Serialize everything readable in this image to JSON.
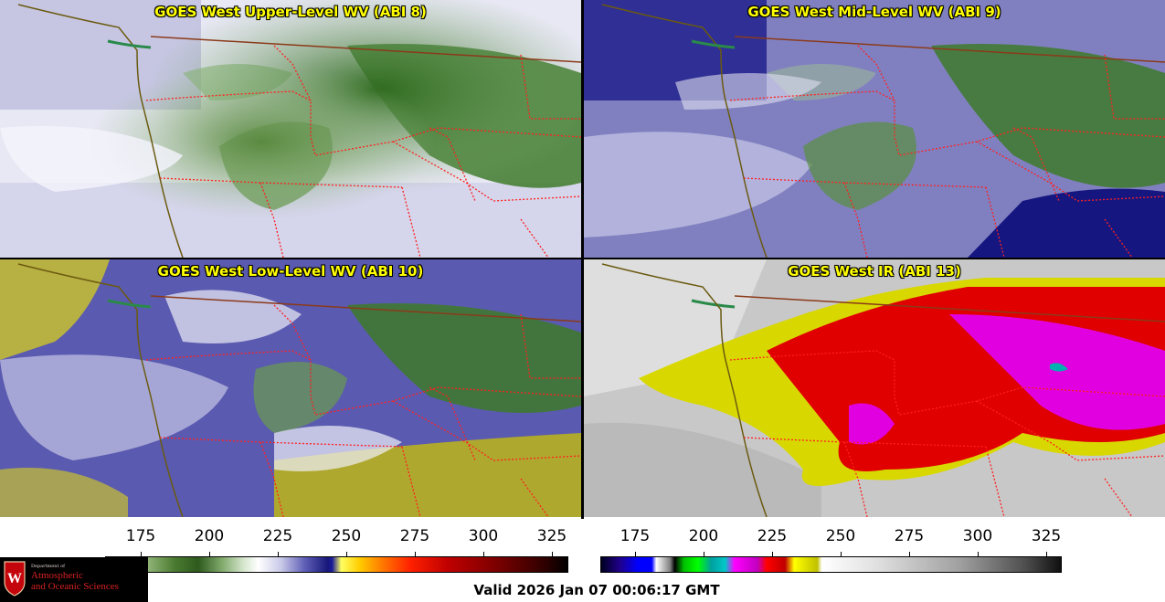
{
  "panels": [
    {
      "id": "p1",
      "title": "GOES West Upper-Level WV (ABI 8)",
      "scheme": "wv_upper"
    },
    {
      "id": "p2",
      "title": "GOES West Mid-Level WV (ABI 9)",
      "scheme": "wv_mid"
    },
    {
      "id": "p3",
      "title": "GOES West Low-Level WV (ABI 10)",
      "scheme": "wv_low"
    },
    {
      "id": "p4",
      "title": "GOES West IR (ABI 13)",
      "scheme": "ir"
    }
  ],
  "colorbars": {
    "wv": {
      "ticks": [
        "175",
        "200",
        "225",
        "250",
        "275",
        "300",
        "325"
      ]
    },
    "ir": {
      "ticks": [
        "175",
        "200",
        "225",
        "250",
        "275",
        "300",
        "325"
      ]
    }
  },
  "valid_time": "Valid 2026 Jan 07 00:06:17 GMT",
  "logo": {
    "line1": "Department of",
    "line2": "Atmospheric",
    "line3": "and Oceanic Sciences",
    "crest_letter": "W"
  },
  "colors": {
    "state_borders": "#ff2020",
    "country_border": "#8b3a1a",
    "coastline": "#6b5a10",
    "title_text": "#ffff00"
  }
}
